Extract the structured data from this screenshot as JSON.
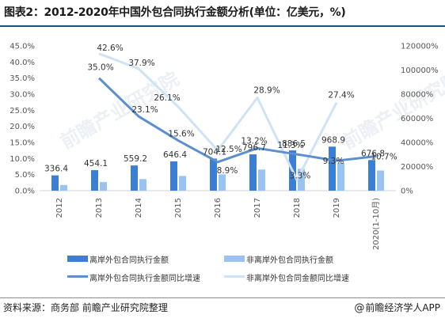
{
  "title": "图表2：2012-2020年中国外包合同执行金额分析(单位：亿美元，%)",
  "source": "资料来源：商务部 前瞻产业研究院整理",
  "brand": "前瞻经济学人APP",
  "watermark": "前瞻产业研究院",
  "colors": {
    "onshore_bar": "#3a7fd5",
    "offshore_bar": "#9ac3f1",
    "onshore_line": "#5b8fcf",
    "offshore_line": "#cfe3f6",
    "rule": "#1f4e79"
  },
  "chart_data": {
    "type": "bar",
    "categories": [
      "2012",
      "2013",
      "2014",
      "2015",
      "2016",
      "2017",
      "2018",
      "2019",
      "2020(1-10月)"
    ],
    "left_axis": {
      "ylim": [
        0,
        45
      ],
      "ticks": [
        "0.0%",
        "5.0%",
        "10.0%",
        "15.0%",
        "20.0%",
        "25.0%",
        "30.0%",
        "35.0%",
        "40.0%",
        "45.0%"
      ]
    },
    "right_axis": {
      "ylim": [
        0,
        120000
      ],
      "ticks": [
        "0%",
        "20000%",
        "40000%",
        "60000%",
        "80000%",
        "100000%",
        "120000%"
      ]
    },
    "series": [
      {
        "name": "离岸外包合同执行金额",
        "kind": "bar",
        "axis": "right",
        "values": [
          12700,
          17000,
          20900,
          24300,
          26600,
          30100,
          33400,
          36500,
          25400
        ],
        "labels": [
          "336.4",
          "454.1",
          "559.2",
          "646.4",
          "704.1",
          "796.7",
          "886.5",
          "968.9",
          "676.8"
        ]
      },
      {
        "name": "非离岸外包合同执行金额",
        "kind": "bar",
        "axis": "right",
        "values": [
          4700,
          7100,
          9600,
          12200,
          13500,
          17500,
          18100,
          22900,
          16700
        ]
      },
      {
        "name": "离岸外包合同执行金额同比增速",
        "kind": "line",
        "axis": "left",
        "values": [
          null,
          35.0,
          23.1,
          15.6,
          8.9,
          13.2,
          11.3,
          9.3,
          10.7
        ],
        "labels": [
          "",
          "35.0%",
          "23.1%",
          "15.6%",
          "8.9%",
          "13.2%",
          "11.3%",
          "9.3%",
          "10.7%"
        ]
      },
      {
        "name": "非离岸外包合同金额同比增速",
        "kind": "line",
        "axis": "left",
        "values": [
          null,
          42.6,
          37.9,
          26.1,
          12.5,
          28.9,
          3.3,
          27.4,
          null
        ],
        "labels": [
          "",
          "42.6%",
          "37.9%",
          "26.1%",
          "12.5%",
          "28.9%",
          "3.3%",
          "27.4%",
          ""
        ]
      }
    ],
    "legend_position": "bottom"
  }
}
